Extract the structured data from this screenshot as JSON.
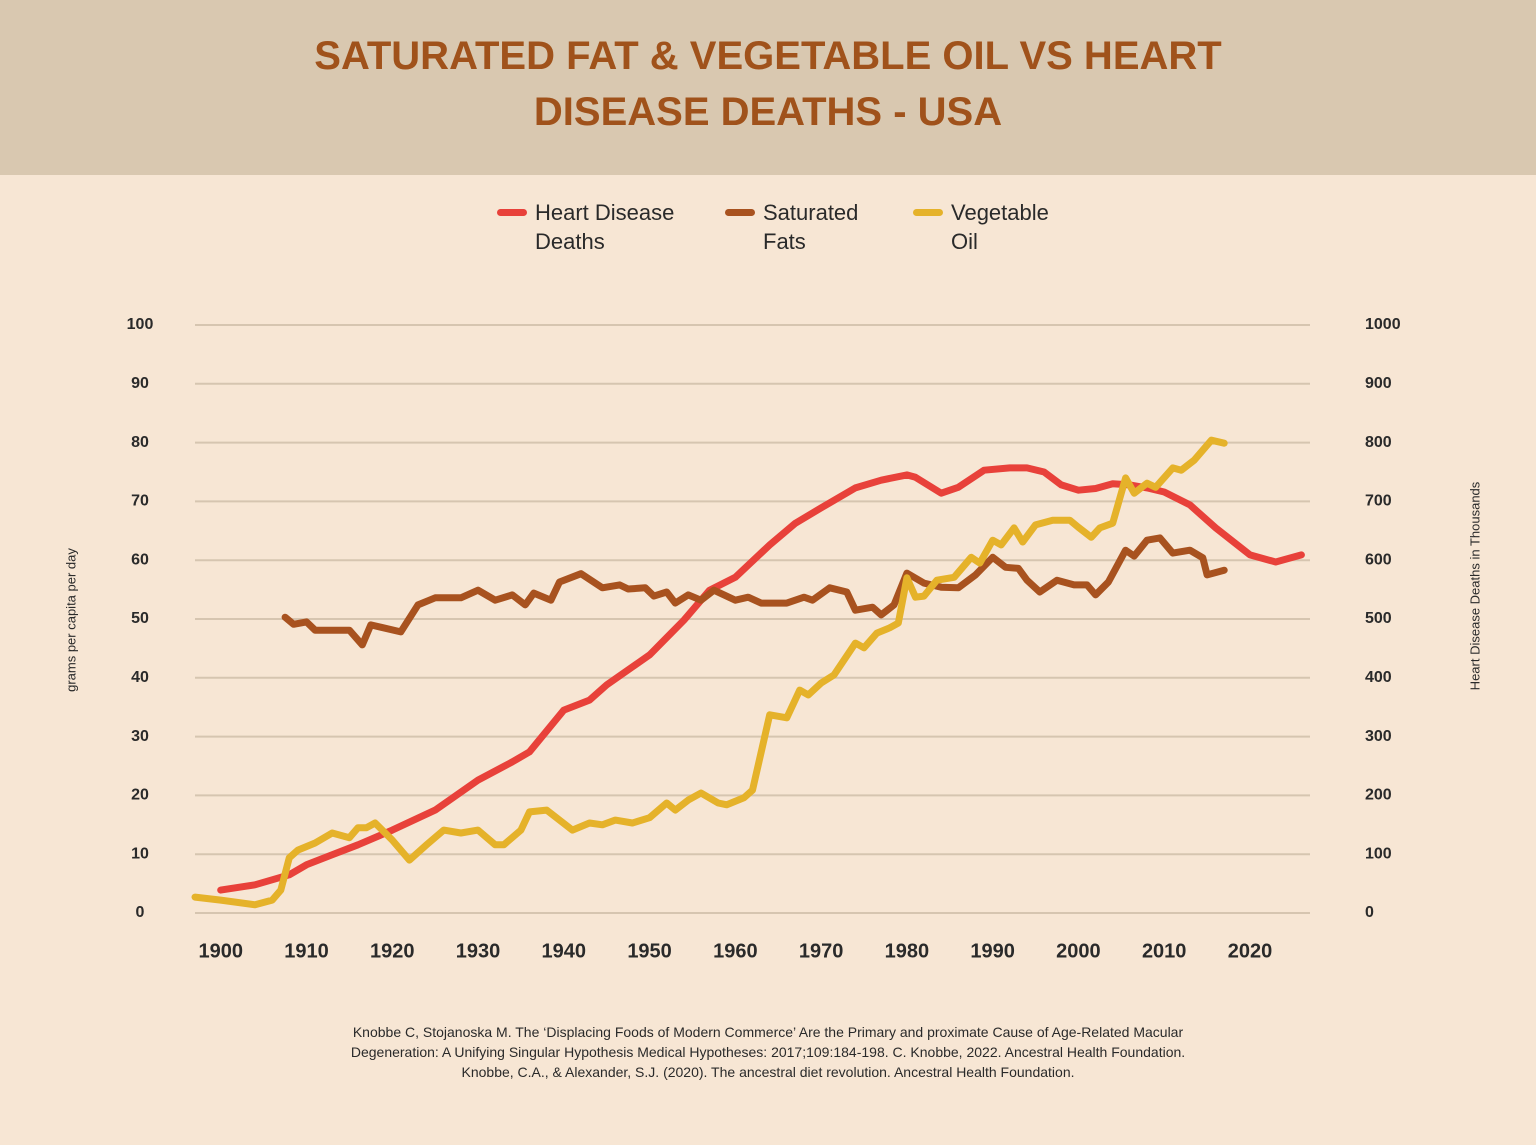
{
  "chart_data": {
    "type": "line",
    "title": "SATURATED FAT & VEGETABLE OIL VS HEART DISEASE DEATHS - USA",
    "y_label": "grams per capita per day",
    "y2_label": "Heart Disease Deaths in Thousands",
    "source": [
      "Knobbe C, Stojanoska M. The ‘Displacing Foods of Modern Commerce’ Are the Primary and proximate Cause of Age-Related Macular",
      "Degeneration: A Unifying Singular Hypothesis Medical Hypotheses: 2017;109:184-198. C. Knobbe, 2022. Ancestral Health Foundation.",
      "Knobbe, C.A., & Alexander, S.J. (2020). The ancestral diet revolution. Ancestral Health Foundation."
    ],
    "xlim": [
      1897,
      2027
    ],
    "xticks": [
      1900,
      1910,
      1920,
      1930,
      1940,
      1950,
      1960,
      1970,
      1980,
      1990,
      2000,
      2010,
      2020
    ],
    "ylim": [
      0,
      100
    ],
    "yticks": [
      0,
      10,
      20,
      30,
      40,
      50,
      60,
      70,
      80,
      90,
      100
    ],
    "y2lim": [
      0,
      1000
    ],
    "y2ticks": [
      0,
      100,
      200,
      300,
      400,
      500,
      600,
      700,
      800,
      900,
      1000
    ],
    "grid": true,
    "series": [
      {
        "name": "Heart Disease Deaths",
        "color": "#e8413a",
        "axis": "y2",
        "x": [
          1900,
          1904,
          1908,
          1910,
          1913,
          1916,
          1920,
          1925,
          1930,
          1934,
          1936,
          1940,
          1943,
          1945,
          1950,
          1954,
          1957,
          1960,
          1964,
          1967,
          1970,
          1974,
          1977,
          1980,
          1981,
          1984,
          1986,
          1989,
          1992,
          1994,
          1996,
          1998,
          2000,
          2002,
          2004,
          2006,
          2008,
          2010,
          2013,
          2016,
          2020,
          2023,
          2026
        ],
        "values": [
          39,
          48,
          65,
          82,
          99,
          116,
          141,
          175,
          226,
          257,
          274,
          345,
          362,
          388,
          439,
          498,
          549,
          571,
          626,
          663,
          689,
          723,
          736,
          745,
          741,
          714,
          724,
          753,
          757,
          757,
          750,
          728,
          719,
          722,
          730,
          728,
          723,
          716,
          694,
          655,
          609,
          597,
          609
        ]
      },
      {
        "name": "Saturated Fats",
        "color": "#a8521f",
        "x": [
          1907.5,
          1908.5,
          1910,
          1911,
          1915,
          1916.5,
          1917.5,
          1921,
          1923,
          1925,
          1928,
          1930,
          1932,
          1934,
          1935.5,
          1936.5,
          1938.5,
          1939.5,
          1942,
          1944.5,
          1946.5,
          1947.5,
          1949.5,
          1950.5,
          1952,
          1953,
          1954.5,
          1956,
          1957.5,
          1960,
          1961.5,
          1963,
          1966,
          1968,
          1969,
          1971,
          1973,
          1974,
          1976,
          1977,
          1978.5,
          1980,
          1982,
          1984,
          1986,
          1988,
          1990,
          1991.5,
          1993,
          1994,
          1995.5,
          1997.5,
          1999.5,
          2001,
          2002,
          2003.5,
          2005.5,
          2006.5,
          2008,
          2009.5,
          2011,
          2013,
          2014.5,
          2015,
          2017
        ],
        "values": [
          50.3,
          49.1,
          49.5,
          48.1,
          48.1,
          45.6,
          49,
          47.8,
          52.4,
          53.6,
          53.6,
          54.9,
          53.2,
          54.1,
          52.4,
          54.4,
          53.2,
          56.3,
          57.7,
          55.3,
          55.8,
          55.1,
          55.3,
          53.9,
          54.6,
          52.7,
          54.1,
          53.2,
          54.9,
          53.2,
          53.7,
          52.7,
          52.7,
          53.7,
          53.2,
          55.3,
          54.6,
          51.5,
          52,
          50.7,
          52.4,
          57.8,
          56.1,
          55.4,
          55.3,
          57.5,
          60.5,
          58.8,
          58.6,
          56.6,
          54.6,
          56.6,
          55.8,
          55.8,
          54.1,
          56.3,
          61.7,
          60.7,
          63.4,
          63.8,
          61.2,
          61.7,
          60.4,
          57.5,
          58.3
        ]
      },
      {
        "name": "Vegetable Oil",
        "color": "#e5b22a",
        "x": [
          1897,
          1900,
          1904,
          1906,
          1907,
          1908,
          1909,
          1911,
          1913,
          1915,
          1916,
          1917,
          1918,
          1920,
          1922,
          1924,
          1926,
          1928,
          1930,
          1932,
          1933,
          1935,
          1936,
          1938,
          1941,
          1943,
          1944.5,
          1946,
          1948,
          1950,
          1952,
          1953,
          1954.5,
          1956,
          1958,
          1959,
          1961,
          1962,
          1964,
          1966,
          1967.5,
          1968.5,
          1970,
          1971.5,
          1974,
          1975,
          1976.5,
          1978,
          1979,
          1980,
          1981,
          1982,
          1983.5,
          1985.5,
          1987.5,
          1988.5,
          1990,
          1991,
          1992.5,
          1993.5,
          1995,
          1997,
          1999,
          2000,
          2001.5,
          2002.5,
          2004,
          2005.5,
          2006.5,
          2008,
          2009,
          2011,
          2012,
          2013.5,
          2015.5,
          2017
        ],
        "values": [
          2.7,
          2.2,
          1.4,
          2.2,
          3.9,
          9.4,
          10.7,
          11.9,
          13.6,
          12.8,
          14.5,
          14.5,
          15.3,
          12.4,
          9,
          11.6,
          14.1,
          13.6,
          14.1,
          11.6,
          11.6,
          14.1,
          17.2,
          17.5,
          14.1,
          15.3,
          15,
          15.8,
          15.3,
          16.2,
          18.7,
          17.5,
          19.2,
          20.4,
          18.7,
          18.4,
          19.6,
          20.9,
          33.7,
          33.2,
          37.9,
          37.1,
          39.1,
          40.5,
          45.9,
          45.1,
          47.6,
          48.5,
          49.3,
          57,
          53.7,
          53.9,
          56.6,
          57.1,
          60.5,
          59.5,
          63.4,
          62.6,
          65.5,
          63.1,
          66,
          66.8,
          66.8,
          65.6,
          63.9,
          65.5,
          66.3,
          74,
          71.4,
          73.1,
          72.4,
          75.7,
          75.3,
          77,
          80.4,
          79.9
        ]
      }
    ]
  }
}
